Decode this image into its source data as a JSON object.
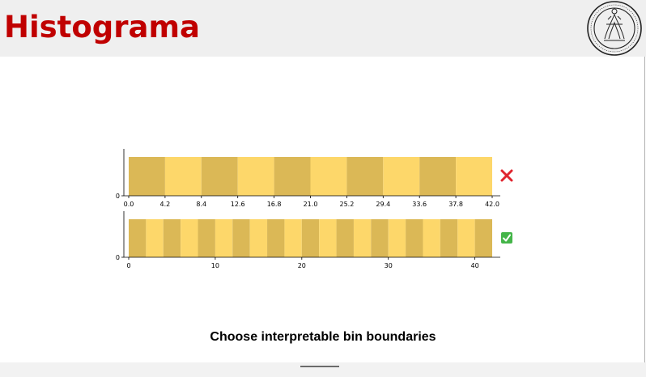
{
  "header": {
    "title": "Histograma"
  },
  "caption": "Choose interpretable bin boundaries",
  "colors": {
    "title": "#c00000",
    "bar_dark": "#dbb856",
    "bar_light": "#fdd76a",
    "cross": "#e0252f",
    "check": "#44b549"
  },
  "icons": {
    "top_marker": "cross-mark-icon",
    "bottom_marker": "check-mark-icon",
    "logo": "university-seal-icon"
  },
  "chart_data": [
    {
      "type": "bar",
      "xlim": [
        0,
        42
      ],
      "ylim": [
        0,
        1
      ],
      "bin_edges": [
        0.0,
        4.2,
        8.4,
        12.6,
        16.8,
        21.0,
        25.2,
        29.4,
        33.6,
        37.8,
        42.0
      ],
      "values": [
        1,
        1,
        1,
        1,
        1,
        1,
        1,
        1,
        1,
        1
      ],
      "xtick_labels": [
        "0.0",
        "4.2",
        "8.4",
        "12.6",
        "16.8",
        "21.0",
        "25.2",
        "29.4",
        "33.6",
        "37.8",
        "42.0"
      ],
      "ytick_labels": [
        "0"
      ],
      "grid": false
    },
    {
      "type": "bar",
      "xlim": [
        0,
        42
      ],
      "ylim": [
        0,
        1
      ],
      "bin_edges": [
        0,
        2,
        4,
        6,
        8,
        10,
        12,
        14,
        16,
        18,
        20,
        22,
        24,
        26,
        28,
        30,
        32,
        34,
        36,
        38,
        40,
        42
      ],
      "values": [
        1,
        1,
        1,
        1,
        1,
        1,
        1,
        1,
        1,
        1,
        1,
        1,
        1,
        1,
        1,
        1,
        1,
        1,
        1,
        1,
        1
      ],
      "xticks": [
        0,
        10,
        20,
        30,
        40
      ],
      "xtick_labels": [
        "0",
        "10",
        "20",
        "30",
        "40"
      ],
      "ytick_labels": [
        "0"
      ],
      "grid": false
    }
  ]
}
